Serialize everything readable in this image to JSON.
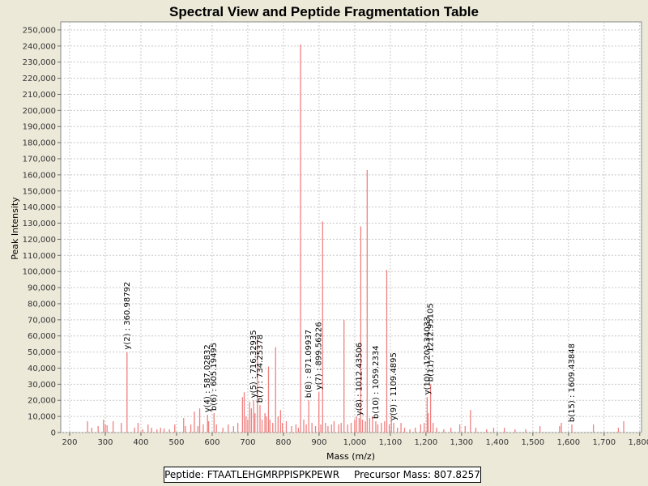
{
  "chart_data": {
    "type": "bar",
    "title": "Spectral View and Peptide Fragmentation Table",
    "xlabel": "Mass (m/z)",
    "ylabel": "Peak Intensity",
    "xlim": [
      175,
      1805
    ],
    "ylim": [
      0,
      255000
    ],
    "x_ticks": [
      200,
      300,
      400,
      500,
      600,
      700,
      800,
      900,
      1000,
      1100,
      1200,
      1300,
      1400,
      1500,
      1600,
      1700,
      1800
    ],
    "x_tick_labels": [
      "200",
      "300",
      "400",
      "500",
      "600",
      "700",
      "800",
      "900",
      "1,000",
      "1,100",
      "1,200",
      "1,300",
      "1,400",
      "1,500",
      "1,600",
      "1,700",
      "1,800"
    ],
    "y_ticks": [
      0,
      10000,
      20000,
      30000,
      40000,
      50000,
      60000,
      70000,
      80000,
      90000,
      100000,
      110000,
      120000,
      130000,
      140000,
      150000,
      160000,
      170000,
      180000,
      190000,
      200000,
      210000,
      220000,
      230000,
      240000,
      250000
    ],
    "y_tick_labels": [
      "0",
      "10,000",
      "20,000",
      "30,000",
      "40,000",
      "50,000",
      "60,000",
      "70,000",
      "80,000",
      "90,000",
      "100,000",
      "110,000",
      "120,000",
      "130,000",
      "140,000",
      "150,000",
      "160,000",
      "170,000",
      "180,000",
      "190,000",
      "200,000",
      "210,000",
      "220,000",
      "230,000",
      "240,000",
      "250,000"
    ],
    "grid": true,
    "bar_color": "#f08080",
    "peaks": [
      {
        "x": 250,
        "y": 7000
      },
      {
        "x": 262,
        "y": 3000
      },
      {
        "x": 280,
        "y": 4000
      },
      {
        "x": 295,
        "y": 8000
      },
      {
        "x": 300,
        "y": 5000
      },
      {
        "x": 305,
        "y": 4500
      },
      {
        "x": 322,
        "y": 7000
      },
      {
        "x": 345,
        "y": 6000
      },
      {
        "x": 360.98792,
        "y": 50000
      },
      {
        "x": 382,
        "y": 3000
      },
      {
        "x": 392,
        "y": 6000
      },
      {
        "x": 405,
        "y": 2000
      },
      {
        "x": 420,
        "y": 5000
      },
      {
        "x": 430,
        "y": 3000
      },
      {
        "x": 445,
        "y": 2000
      },
      {
        "x": 455,
        "y": 3000
      },
      {
        "x": 465,
        "y": 2500
      },
      {
        "x": 480,
        "y": 2000
      },
      {
        "x": 495,
        "y": 5000
      },
      {
        "x": 520,
        "y": 9000
      },
      {
        "x": 525,
        "y": 4000
      },
      {
        "x": 540,
        "y": 5000
      },
      {
        "x": 550,
        "y": 13000
      },
      {
        "x": 560,
        "y": 4000
      },
      {
        "x": 565,
        "y": 15000
      },
      {
        "x": 575,
        "y": 5000
      },
      {
        "x": 587.02832,
        "y": 11000
      },
      {
        "x": 590,
        "y": 7000
      },
      {
        "x": 605.19495,
        "y": 12000
      },
      {
        "x": 612,
        "y": 5000
      },
      {
        "x": 630,
        "y": 3000
      },
      {
        "x": 645,
        "y": 5000
      },
      {
        "x": 660,
        "y": 4000
      },
      {
        "x": 672,
        "y": 6000
      },
      {
        "x": 685,
        "y": 22000
      },
      {
        "x": 690,
        "y": 25000
      },
      {
        "x": 695,
        "y": 10000
      },
      {
        "x": 700,
        "y": 8000
      },
      {
        "x": 705,
        "y": 19000
      },
      {
        "x": 710,
        "y": 15000
      },
      {
        "x": 716.32935,
        "y": 20000
      },
      {
        "x": 720,
        "y": 12000
      },
      {
        "x": 727,
        "y": 58000
      },
      {
        "x": 734.25378,
        "y": 17000
      },
      {
        "x": 740,
        "y": 8000
      },
      {
        "x": 748,
        "y": 12000
      },
      {
        "x": 752,
        "y": 10000
      },
      {
        "x": 758,
        "y": 41000
      },
      {
        "x": 762,
        "y": 8000
      },
      {
        "x": 770,
        "y": 6000
      },
      {
        "x": 778,
        "y": 53000
      },
      {
        "x": 785,
        "y": 10000
      },
      {
        "x": 792,
        "y": 14000
      },
      {
        "x": 797,
        "y": 6000
      },
      {
        "x": 808,
        "y": 7000
      },
      {
        "x": 823,
        "y": 4000
      },
      {
        "x": 835,
        "y": 5000
      },
      {
        "x": 842,
        "y": 3000
      },
      {
        "x": 848,
        "y": 241000
      },
      {
        "x": 857,
        "y": 8000
      },
      {
        "x": 864,
        "y": 5000
      },
      {
        "x": 871.09937,
        "y": 20000
      },
      {
        "x": 880,
        "y": 6000
      },
      {
        "x": 890,
        "y": 4000
      },
      {
        "x": 899.56226,
        "y": 25000
      },
      {
        "x": 905,
        "y": 5000
      },
      {
        "x": 910,
        "y": 131000
      },
      {
        "x": 918,
        "y": 6000
      },
      {
        "x": 925,
        "y": 4000
      },
      {
        "x": 935,
        "y": 5000
      },
      {
        "x": 942,
        "y": 7000
      },
      {
        "x": 955,
        "y": 5000
      },
      {
        "x": 962,
        "y": 6000
      },
      {
        "x": 970,
        "y": 70000
      },
      {
        "x": 980,
        "y": 5000
      },
      {
        "x": 990,
        "y": 6000
      },
      {
        "x": 1000,
        "y": 8000
      },
      {
        "x": 1005,
        "y": 10000
      },
      {
        "x": 1012.43506,
        "y": 9000
      },
      {
        "x": 1017,
        "y": 128000
      },
      {
        "x": 1022,
        "y": 8000
      },
      {
        "x": 1030,
        "y": 7000
      },
      {
        "x": 1035,
        "y": 163000
      },
      {
        "x": 1042,
        "y": 9000
      },
      {
        "x": 1050,
        "y": 10000
      },
      {
        "x": 1059.2334,
        "y": 7000
      },
      {
        "x": 1065,
        "y": 5000
      },
      {
        "x": 1075,
        "y": 6000
      },
      {
        "x": 1084,
        "y": 7000
      },
      {
        "x": 1090,
        "y": 101000
      },
      {
        "x": 1097,
        "y": 5000
      },
      {
        "x": 1103,
        "y": 11000
      },
      {
        "x": 1109.4895,
        "y": 6000
      },
      {
        "x": 1120,
        "y": 3000
      },
      {
        "x": 1130,
        "y": 6000
      },
      {
        "x": 1140,
        "y": 3000
      },
      {
        "x": 1155,
        "y": 2000
      },
      {
        "x": 1170,
        "y": 3000
      },
      {
        "x": 1185,
        "y": 5000
      },
      {
        "x": 1195,
        "y": 6000
      },
      {
        "x": 1203.34033,
        "y": 22000
      },
      {
        "x": 1206,
        "y": 12000
      },
      {
        "x": 1212.95105,
        "y": 30000
      },
      {
        "x": 1220,
        "y": 6000
      },
      {
        "x": 1230,
        "y": 3000
      },
      {
        "x": 1250,
        "y": 2000
      },
      {
        "x": 1270,
        "y": 3000
      },
      {
        "x": 1295,
        "y": 5000
      },
      {
        "x": 1310,
        "y": 4000
      },
      {
        "x": 1325,
        "y": 14000
      },
      {
        "x": 1340,
        "y": 3000
      },
      {
        "x": 1370,
        "y": 2000
      },
      {
        "x": 1390,
        "y": 3000
      },
      {
        "x": 1420,
        "y": 3000
      },
      {
        "x": 1450,
        "y": 2000
      },
      {
        "x": 1480,
        "y": 2000
      },
      {
        "x": 1520,
        "y": 4000
      },
      {
        "x": 1575,
        "y": 4000
      },
      {
        "x": 1580,
        "y": 6000
      },
      {
        "x": 1609.43848,
        "y": 5000
      },
      {
        "x": 1670,
        "y": 5000
      },
      {
        "x": 1740,
        "y": 3000
      },
      {
        "x": 1755,
        "y": 7000
      }
    ],
    "annotations": [
      {
        "x": 360.98792,
        "y": 50000,
        "label": "y(2) : 360.98792"
      },
      {
        "x": 587.02832,
        "y": 11000,
        "label": "y(4) : 587.02832"
      },
      {
        "x": 605.19495,
        "y": 12000,
        "label": "b(6) : 605.19495"
      },
      {
        "x": 716.32935,
        "y": 20000,
        "label": "y(5) : 716.32935"
      },
      {
        "x": 734.25378,
        "y": 17000,
        "label": "b(7) : 734.25378"
      },
      {
        "x": 871.09937,
        "y": 20000,
        "label": "b(8) : 871.09937"
      },
      {
        "x": 899.56226,
        "y": 25000,
        "label": "y(7) : 899.56226"
      },
      {
        "x": 1012.43506,
        "y": 9000,
        "label": "y(8) : 1012.43506"
      },
      {
        "x": 1059.2334,
        "y": 7000,
        "label": "b(10) : 1059.2334"
      },
      {
        "x": 1109.4895,
        "y": 6000,
        "label": "y(9) : 1109.4895"
      },
      {
        "x": 1203.34033,
        "y": 22000,
        "label": "y(10) : 1203.34033"
      },
      {
        "x": 1212.95105,
        "y": 30000,
        "label": "b(11) : 1212.95105"
      },
      {
        "x": 1609.43848,
        "y": 5000,
        "label": "b(15) : 1609.43848"
      }
    ]
  },
  "legend": {
    "peptide": "Peptide: FTAATLEHGMRPPISPKPEWR",
    "precursor": "Precursor Mass: 807.8257"
  }
}
